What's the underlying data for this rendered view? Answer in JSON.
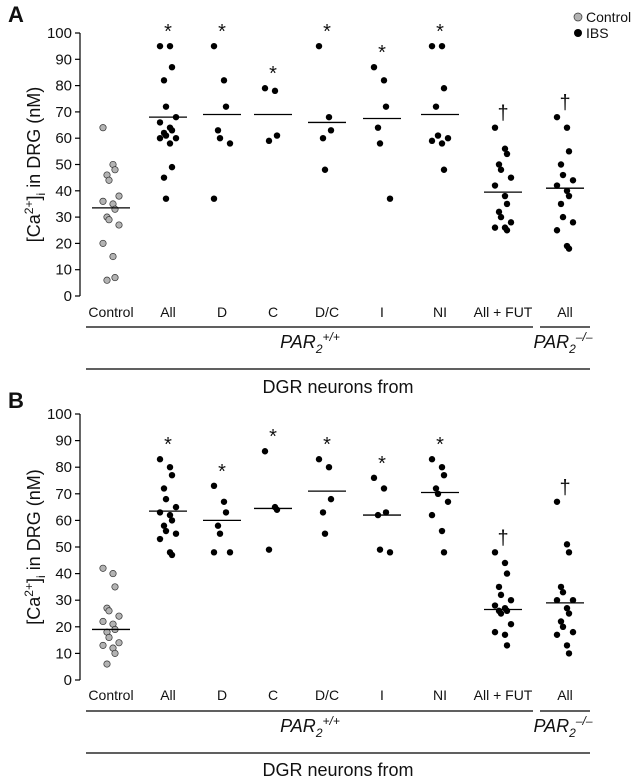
{
  "chart_data": [
    {
      "type": "dot",
      "panel": "A",
      "ylabel": {
        "pre": "[Ca",
        "sup": "2+",
        "mid": "]",
        "sub": "i",
        "post": " in DRG (nM)"
      },
      "categories": [
        "Control",
        "All",
        "D",
        "C",
        "D/C",
        "I",
        "NI",
        "All + FUT",
        "All"
      ],
      "ylim": [
        0,
        100
      ],
      "yticks": [
        0,
        10,
        20,
        30,
        40,
        50,
        60,
        70,
        80,
        90,
        100
      ],
      "series": [
        {
          "name": "Control",
          "color": "#b3b3b3",
          "values": [
            [
              64,
              50,
              48,
              46,
              44,
              38,
              36,
              35,
              33,
              30,
              29,
              27,
              20,
              15,
              7,
              6
            ],
            null,
            null,
            null,
            null,
            null,
            null,
            null,
            null
          ]
        },
        {
          "name": "IBS",
          "color": "#000000",
          "values": [
            null,
            [
              95,
              95,
              87,
              82,
              72,
              68,
              66,
              64,
              63,
              62,
              61,
              60,
              60,
              58,
              49,
              45,
              37
            ],
            [
              95,
              82,
              72,
              63,
              60,
              58,
              37
            ],
            [
              79,
              78,
              61,
              59
            ],
            [
              95,
              68,
              63,
              60,
              48
            ],
            [
              87,
              82,
              72,
              64,
              58,
              37
            ],
            [
              95,
              95,
              79,
              72,
              61,
              60,
              59,
              58,
              48
            ],
            [
              64,
              56,
              54,
              50,
              48,
              45,
              42,
              38,
              35,
              32,
              30,
              28,
              26,
              26,
              25
            ],
            [
              68,
              64,
              55,
              50,
              46,
              44,
              42,
              40,
              38,
              35,
              30,
              28,
              25,
              19,
              18
            ]
          ]
        }
      ],
      "means": [
        33.5,
        68,
        69,
        69,
        66,
        67.5,
        69,
        39.5,
        41
      ],
      "markers": [
        null,
        "*",
        "*",
        "*",
        "*",
        "*",
        "*",
        "†",
        "†"
      ],
      "groups": [
        {
          "pre": "PAR",
          "sub": "2",
          "sup": "+/+"
        },
        {
          "pre": "PAR",
          "sub": "2",
          "sup": "–/–"
        }
      ],
      "xlabel": "DGR neurons from",
      "legend": "upper right"
    },
    {
      "type": "dot",
      "panel": "B",
      "ylabel": {
        "pre": "[Ca",
        "sup": "2+",
        "mid": "]",
        "sub": "i",
        "post": " in DRG (nM)"
      },
      "categories": [
        "Control",
        "All",
        "D",
        "C",
        "D/C",
        "I",
        "NI",
        "All + FUT",
        "All"
      ],
      "ylim": [
        0,
        100
      ],
      "yticks": [
        0,
        10,
        20,
        30,
        40,
        50,
        60,
        70,
        80,
        90,
        100
      ],
      "series": [
        {
          "color": "#b3b3b3",
          "values": [
            [
              42,
              40,
              35,
              27,
              26,
              24,
              22,
              21,
              19,
              18,
              16,
              14,
              13,
              12,
              10,
              6
            ],
            null,
            null,
            null,
            null,
            null,
            null,
            null,
            null
          ]
        },
        {
          "color": "#000000",
          "values": [
            null,
            [
              83,
              80,
              77,
              72,
              68,
              65,
              63,
              62,
              60,
              58,
              56,
              55,
              53,
              48,
              47
            ],
            [
              73,
              67,
              63,
              58,
              55,
              48,
              48
            ],
            [
              86,
              65,
              64,
              49
            ],
            [
              83,
              80,
              68,
              63,
              55
            ],
            [
              76,
              72,
              63,
              62,
              49,
              48
            ],
            [
              83,
              80,
              77,
              72,
              70,
              67,
              62,
              56,
              48
            ],
            [
              48,
              44,
              40,
              35,
              32,
              30,
              28,
              27,
              26,
              26,
              25,
              21,
              18,
              17,
              13
            ],
            [
              67,
              51,
              48,
              35,
              33,
              30,
              30,
              27,
              25,
              22,
              20,
              18,
              17,
              13,
              10
            ]
          ]
        }
      ],
      "means": [
        19,
        63.5,
        60,
        64.5,
        71,
        62,
        70.5,
        26.5,
        29
      ],
      "markers": [
        null,
        "*",
        "*",
        "*",
        "*",
        "*",
        "*",
        "†",
        "†"
      ],
      "groups": [
        {
          "pre": "PAR",
          "sub": "2",
          "sup": "+/+"
        },
        {
          "pre": "PAR",
          "sub": "2",
          "sup": "–/–"
        }
      ],
      "xlabel": "DGR neurons from"
    }
  ]
}
